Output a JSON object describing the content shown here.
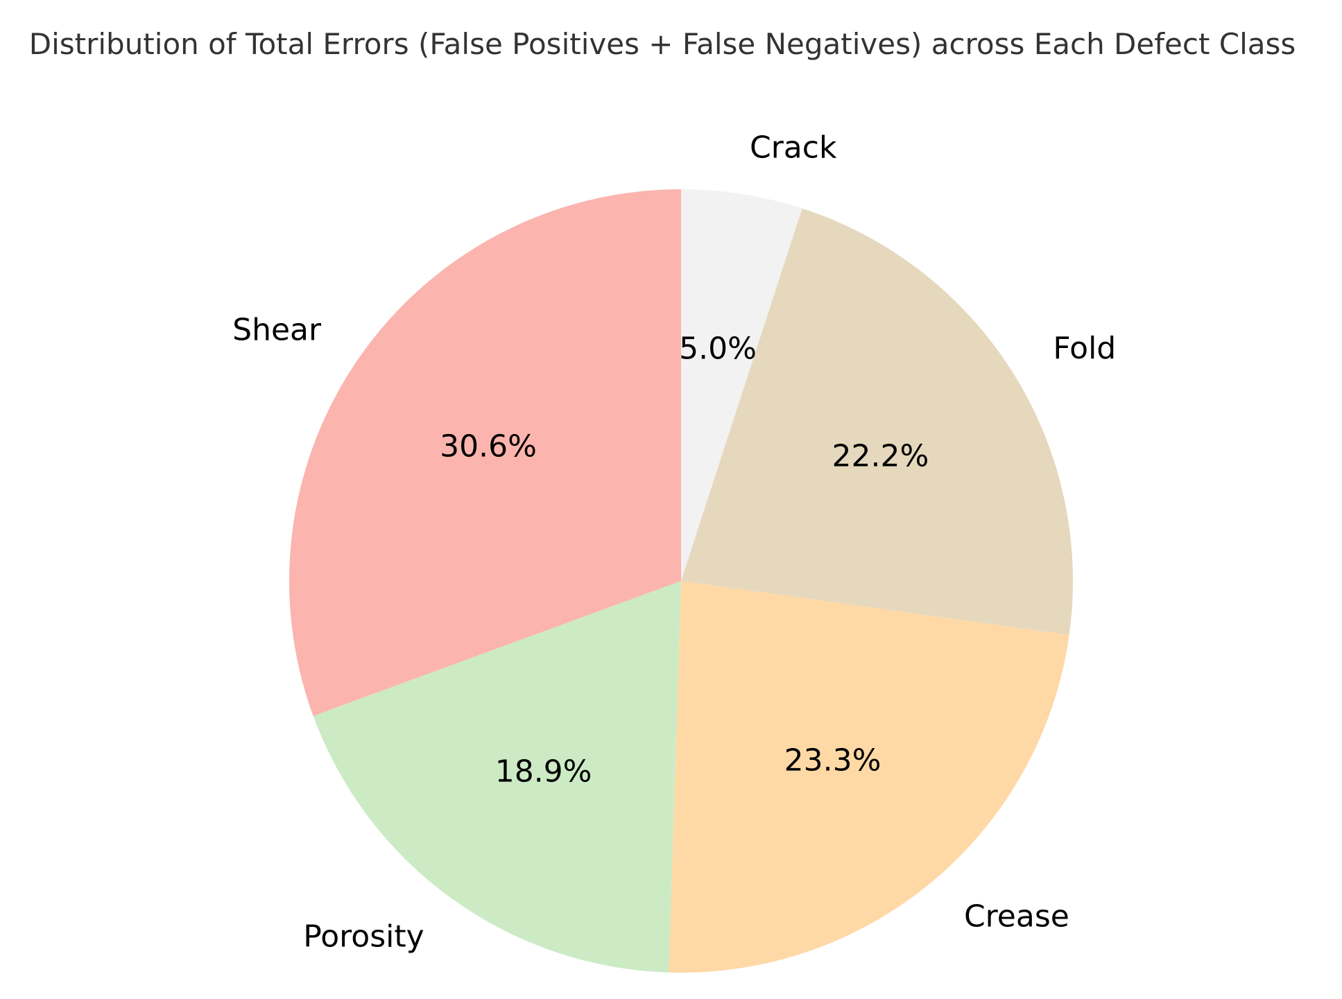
{
  "chart_data": {
    "type": "pie",
    "title": "Distribution of Total Errors (False Positives + False Negatives) across Each Defect Class",
    "slices": [
      {
        "label": "Crack",
        "value": 5.0,
        "pct_label": "5.0%",
        "color": "#F2F2F2"
      },
      {
        "label": "Fold",
        "value": 22.2,
        "pct_label": "22.2%",
        "color": "#E5D8BD"
      },
      {
        "label": "Crease",
        "value": 23.3,
        "pct_label": "23.3%",
        "color": "#FED9A6"
      },
      {
        "label": "Porosity",
        "value": 18.9,
        "pct_label": "18.9%",
        "color": "#CCEBC5"
      },
      {
        "label": "Shear",
        "value": 30.6,
        "pct_label": "30.6%",
        "color": "#FBB4AE"
      }
    ],
    "start_angle": "top",
    "direction": "clockwise"
  }
}
